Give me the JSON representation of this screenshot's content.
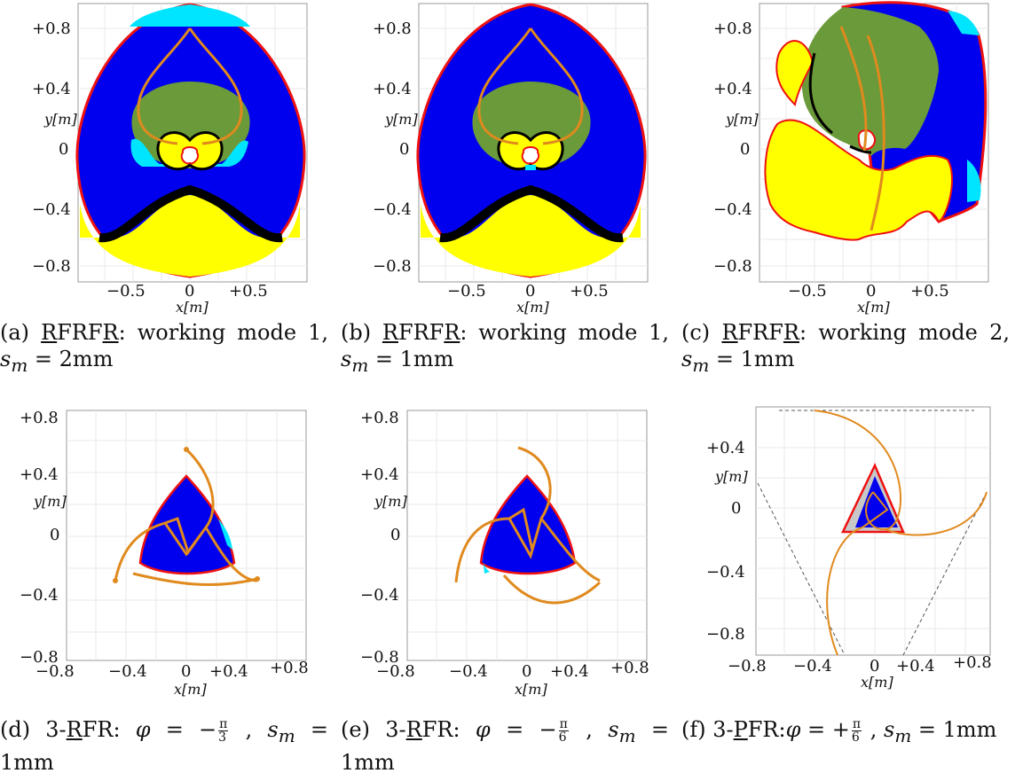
{
  "colors": {
    "blue": "#0000ee",
    "cyan": "#00e5ff",
    "olive": "#6b9a3a",
    "yellow": "#ffff00",
    "black": "#000000",
    "red": "#ee1111",
    "orange": "#e08a1e",
    "grey": "#c8c8c8"
  },
  "figures": [
    {
      "id": "a",
      "yticks": [
        "+0.8",
        "+0.4",
        "0",
        "−0.4",
        "−0.8"
      ],
      "xticks": [
        "−0.5",
        "0",
        "+0.5"
      ],
      "xlabel": "x[m]",
      "ylabel": "y[m]",
      "caption": {
        "prefix": "(a) ",
        "u1": "R",
        "mid": "FRF",
        "u2": "R",
        "rest": ": working mode 1, ",
        "var": "s",
        "sub": "m",
        "value": " = 2mm"
      }
    },
    {
      "id": "b",
      "yticks": [
        "+0.8",
        "+0.4",
        "0",
        "−0.4",
        "−0.8"
      ],
      "xticks": [
        "−0.5",
        "0",
        "+0.5"
      ],
      "xlabel": "x[m]",
      "ylabel": "y[m]",
      "caption": {
        "prefix": "(b) ",
        "u1": "R",
        "mid": "FRF",
        "u2": "R",
        "rest": ": working mode 1, ",
        "var": "s",
        "sub": "m",
        "value": " = 1mm"
      }
    },
    {
      "id": "c",
      "yticks": [
        "+0.8",
        "+0.4",
        "0",
        "−0.4",
        "−0.8"
      ],
      "xticks": [
        "−0.5",
        "0",
        "+0.5"
      ],
      "xlabel": "x[m]",
      "ylabel": "y[m]",
      "caption": {
        "prefix": "(c) ",
        "u1": "R",
        "mid": "FRF",
        "u2": "R",
        "rest": ": working mode 2, ",
        "var": "s",
        "sub": "m",
        "value": " = 1mm"
      }
    },
    {
      "id": "d",
      "yticks": [
        "+0.8",
        "+0.4",
        "0",
        "−0.4",
        "−0.8"
      ],
      "xticks": [
        "−0.8",
        "−0.4",
        "0",
        "+0.4",
        "+0.8"
      ],
      "xlabel": "x[m]",
      "ylabel": "y[m]",
      "caption": {
        "prefix": "(d) 3-",
        "u1": "R",
        "mid": "FR: ",
        "phi": "φ",
        "eq": " = −",
        "num": "π",
        "den": "3",
        "rest": " , ",
        "var": "s",
        "sub": "m",
        "value": " = 1mm"
      }
    },
    {
      "id": "e",
      "yticks": [
        "+0.8",
        "+0.4",
        "0",
        "−0.4",
        "−0.8"
      ],
      "xticks": [
        "−0.8",
        "−0.4",
        "0",
        "+0.4",
        "+0.8"
      ],
      "xlabel": "x[m]",
      "ylabel": "y[m]",
      "caption": {
        "prefix": "(e) 3-",
        "u1": "R",
        "mid": "FR: ",
        "phi": "φ",
        "eq": " = −",
        "num": "π",
        "den": "6",
        "rest": " , ",
        "var": "s",
        "sub": "m",
        "value": " = 1mm"
      }
    },
    {
      "id": "f",
      "yticks": [
        "+0.4",
        "0",
        "−0.4",
        "−0.8"
      ],
      "xticks": [
        "−0.8",
        "−0.4",
        "0",
        "+0.4",
        "+0.8"
      ],
      "xlabel": "x[m]",
      "ylabel": "y[m]",
      "caption": {
        "prefix": "(f) 3-",
        "u1": "P",
        "mid": "FR:",
        "phi": "φ",
        "eq": " = +",
        "num": "π",
        "den": "6",
        "rest": " , ",
        "var": "s",
        "sub": "m",
        "value": " = 1mm"
      }
    }
  ]
}
